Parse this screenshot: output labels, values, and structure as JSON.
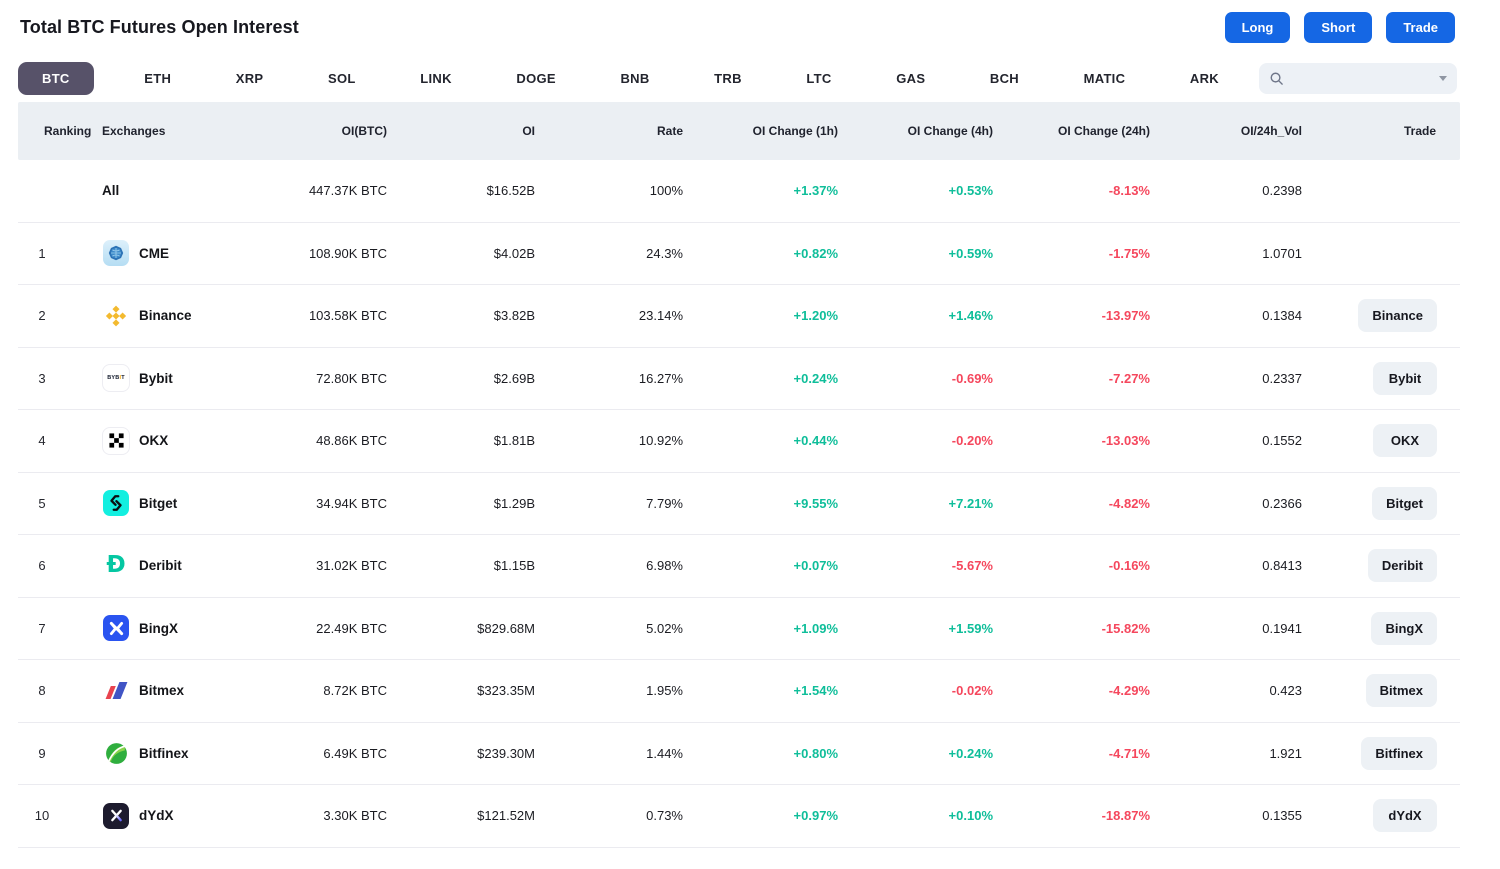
{
  "header": {
    "title": "Total BTC Futures Open Interest",
    "actions": [
      {
        "label": "Long"
      },
      {
        "label": "Short"
      },
      {
        "label": "Trade"
      }
    ]
  },
  "tabs": [
    {
      "label": "BTC",
      "active": true
    },
    {
      "label": "ETH",
      "active": false
    },
    {
      "label": "XRP",
      "active": false
    },
    {
      "label": "SOL",
      "active": false
    },
    {
      "label": "LINK",
      "active": false
    },
    {
      "label": "DOGE",
      "active": false
    },
    {
      "label": "BNB",
      "active": false
    },
    {
      "label": "TRB",
      "active": false
    },
    {
      "label": "LTC",
      "active": false
    },
    {
      "label": "GAS",
      "active": false
    },
    {
      "label": "BCH",
      "active": false
    },
    {
      "label": "MATIC",
      "active": false
    },
    {
      "label": "ARK",
      "active": false
    }
  ],
  "search": {
    "value": "",
    "placeholder": "",
    "icons": [
      "search-icon",
      "caret-down-icon"
    ]
  },
  "colors": {
    "positive": "#0FBE9A",
    "negative": "#F5475D",
    "accent_blue": "#1567E4",
    "tab_active_bg": "#575269",
    "table_header_bg": "#EBEFF3"
  },
  "table": {
    "columns": [
      "Ranking",
      "Exchanges",
      "OI(BTC)",
      "OI",
      "Rate",
      "OI Change (1h)",
      "OI Change (4h)",
      "OI Change (24h)",
      "OI/24h_Vol",
      "Trade"
    ],
    "rows": [
      {
        "rank": "",
        "exchange": "All",
        "icon": "",
        "oi_btc": "447.37K BTC",
        "oi": "$16.52B",
        "rate": "100%",
        "chg_1h": "+1.37%",
        "chg_4h": "+0.53%",
        "chg_24h": "-8.13%",
        "oi_24h_vol": "0.2398",
        "trade": ""
      },
      {
        "rank": "1",
        "exchange": "CME",
        "icon": "cme-logo",
        "oi_btc": "108.90K BTC",
        "oi": "$4.02B",
        "rate": "24.3%",
        "chg_1h": "+0.82%",
        "chg_4h": "+0.59%",
        "chg_24h": "-1.75%",
        "oi_24h_vol": "1.0701",
        "trade": ""
      },
      {
        "rank": "2",
        "exchange": "Binance",
        "icon": "binance-logo",
        "oi_btc": "103.58K BTC",
        "oi": "$3.82B",
        "rate": "23.14%",
        "chg_1h": "+1.20%",
        "chg_4h": "+1.46%",
        "chg_24h": "-13.97%",
        "oi_24h_vol": "0.1384",
        "trade": "Binance"
      },
      {
        "rank": "3",
        "exchange": "Bybit",
        "icon": "bybit-logo",
        "oi_btc": "72.80K BTC",
        "oi": "$2.69B",
        "rate": "16.27%",
        "chg_1h": "+0.24%",
        "chg_4h": "-0.69%",
        "chg_24h": "-7.27%",
        "oi_24h_vol": "0.2337",
        "trade": "Bybit"
      },
      {
        "rank": "4",
        "exchange": "OKX",
        "icon": "okx-logo",
        "oi_btc": "48.86K BTC",
        "oi": "$1.81B",
        "rate": "10.92%",
        "chg_1h": "+0.44%",
        "chg_4h": "-0.20%",
        "chg_24h": "-13.03%",
        "oi_24h_vol": "0.1552",
        "trade": "OKX"
      },
      {
        "rank": "5",
        "exchange": "Bitget",
        "icon": "bitget-logo",
        "oi_btc": "34.94K BTC",
        "oi": "$1.29B",
        "rate": "7.79%",
        "chg_1h": "+9.55%",
        "chg_4h": "+7.21%",
        "chg_24h": "-4.82%",
        "oi_24h_vol": "0.2366",
        "trade": "Bitget"
      },
      {
        "rank": "6",
        "exchange": "Deribit",
        "icon": "deribit-logo",
        "oi_btc": "31.02K BTC",
        "oi": "$1.15B",
        "rate": "6.98%",
        "chg_1h": "+0.07%",
        "chg_4h": "-5.67%",
        "chg_24h": "-0.16%",
        "oi_24h_vol": "0.8413",
        "trade": "Deribit"
      },
      {
        "rank": "7",
        "exchange": "BingX",
        "icon": "bingx-logo",
        "oi_btc": "22.49K BTC",
        "oi": "$829.68M",
        "rate": "5.02%",
        "chg_1h": "+1.09%",
        "chg_4h": "+1.59%",
        "chg_24h": "-15.82%",
        "oi_24h_vol": "0.1941",
        "trade": "BingX"
      },
      {
        "rank": "8",
        "exchange": "Bitmex",
        "icon": "bitmex-logo",
        "oi_btc": "8.72K BTC",
        "oi": "$323.35M",
        "rate": "1.95%",
        "chg_1h": "+1.54%",
        "chg_4h": "-0.02%",
        "chg_24h": "-4.29%",
        "oi_24h_vol": "0.423",
        "trade": "Bitmex"
      },
      {
        "rank": "9",
        "exchange": "Bitfinex",
        "icon": "bitfinex-logo",
        "oi_btc": "6.49K BTC",
        "oi": "$239.30M",
        "rate": "1.44%",
        "chg_1h": "+0.80%",
        "chg_4h": "+0.24%",
        "chg_24h": "-4.71%",
        "oi_24h_vol": "1.921",
        "trade": "Bitfinex"
      },
      {
        "rank": "10",
        "exchange": "dYdX",
        "icon": "dydx-logo",
        "oi_btc": "3.30K BTC",
        "oi": "$121.52M",
        "rate": "0.73%",
        "chg_1h": "+0.97%",
        "chg_4h": "+0.10%",
        "chg_24h": "-18.87%",
        "oi_24h_vol": "0.1355",
        "trade": "dYdX"
      }
    ]
  }
}
